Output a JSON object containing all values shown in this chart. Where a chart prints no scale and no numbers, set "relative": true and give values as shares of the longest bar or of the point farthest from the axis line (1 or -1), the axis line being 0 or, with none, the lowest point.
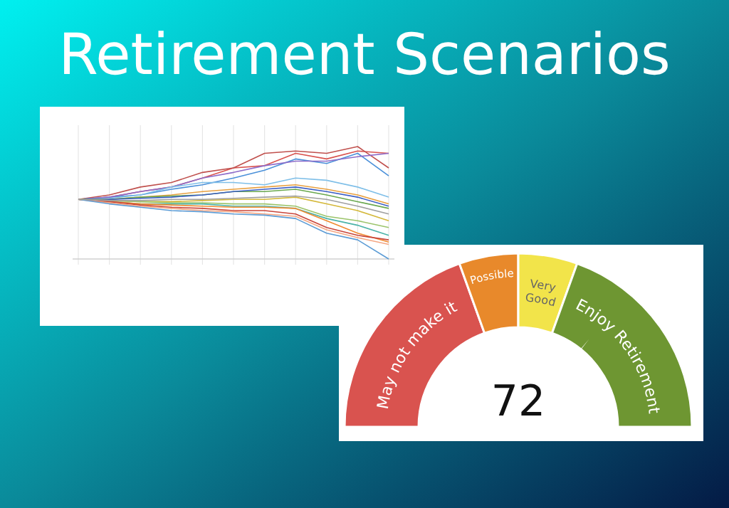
{
  "chart_data": [
    {
      "type": "line",
      "title": "Retirement Scenarios",
      "relative": true,
      "grid": "x",
      "categories": [
        null,
        null,
        null,
        null,
        null,
        null,
        null,
        null,
        null,
        null,
        null
      ],
      "series": [
        {
          "color": "#d9534f",
          "values": [
            0.53,
            0.55,
            0.6,
            0.64,
            0.72,
            0.81,
            0.83,
            0.94,
            0.89,
            0.96,
            0.94
          ]
        },
        {
          "color": "#c0504d",
          "values": [
            0.53,
            0.57,
            0.64,
            0.68,
            0.77,
            0.81,
            0.94,
            0.96,
            0.94,
            1.0,
            0.81
          ]
        },
        {
          "color": "#4a90d9",
          "values": [
            0.53,
            0.55,
            0.57,
            0.62,
            0.66,
            0.72,
            0.79,
            0.89,
            0.85,
            0.94,
            0.74
          ]
        },
        {
          "color": "#8e6cc9",
          "values": [
            0.53,
            0.55,
            0.6,
            0.64,
            0.72,
            0.77,
            0.83,
            0.87,
            0.87,
            0.91,
            0.94
          ]
        },
        {
          "color": "#7fbfe8",
          "values": [
            0.53,
            0.54,
            0.57,
            0.64,
            0.68,
            0.68,
            0.66,
            0.72,
            0.7,
            0.64,
            0.55
          ]
        },
        {
          "color": "#e8a040",
          "values": [
            0.53,
            0.53,
            0.55,
            0.57,
            0.6,
            0.62,
            0.64,
            0.66,
            0.62,
            0.57,
            0.49
          ]
        },
        {
          "color": "#6aa84f",
          "values": [
            0.53,
            0.53,
            0.55,
            0.56,
            0.57,
            0.6,
            0.6,
            0.62,
            0.57,
            0.51,
            0.45
          ]
        },
        {
          "color": "#3d5fc4",
          "values": [
            0.53,
            0.53,
            0.54,
            0.55,
            0.57,
            0.6,
            0.62,
            0.64,
            0.6,
            0.55,
            0.47
          ]
        },
        {
          "color": "#d4b83a",
          "values": [
            0.53,
            0.52,
            0.51,
            0.51,
            0.52,
            0.53,
            0.53,
            0.55,
            0.49,
            0.43,
            0.34
          ]
        },
        {
          "color": "#9bc46a",
          "values": [
            0.53,
            0.52,
            0.51,
            0.5,
            0.5,
            0.49,
            0.49,
            0.47,
            0.38,
            0.34,
            0.28
          ]
        },
        {
          "color": "#4bb3a8",
          "values": [
            0.53,
            0.51,
            0.49,
            0.49,
            0.49,
            0.47,
            0.47,
            0.45,
            0.36,
            0.3,
            0.21
          ]
        },
        {
          "color": "#f08a30",
          "values": [
            0.53,
            0.51,
            0.49,
            0.48,
            0.47,
            0.46,
            0.46,
            0.45,
            0.34,
            0.23,
            0.15
          ]
        },
        {
          "color": "#c9453a",
          "values": [
            0.53,
            0.51,
            0.48,
            0.46,
            0.45,
            0.43,
            0.43,
            0.4,
            0.28,
            0.21,
            0.17
          ]
        },
        {
          "color": "#f4a582",
          "values": [
            0.53,
            0.5,
            0.47,
            0.45,
            0.43,
            0.42,
            0.4,
            0.38,
            0.26,
            0.19,
            0.13
          ]
        },
        {
          "color": "#5b9bd5",
          "values": [
            0.53,
            0.49,
            0.46,
            0.43,
            0.42,
            0.4,
            0.39,
            0.36,
            0.23,
            0.17,
            0.0
          ]
        },
        {
          "color": "#a0a0a0",
          "values": [
            0.53,
            0.52,
            0.52,
            0.53,
            0.53,
            0.54,
            0.55,
            0.56,
            0.53,
            0.47,
            0.4
          ]
        }
      ]
    },
    {
      "type": "donut",
      "categories": [
        "May not make it",
        "Possible",
        "Very Good",
        "Enjoy Retirement"
      ],
      "values": [
        39,
        11,
        11,
        39
      ],
      "colors": [
        "#d9534f",
        "#e8892b",
        "#f2e44a",
        "#6e9632"
      ],
      "needle": "Enjoy Retirement",
      "annotations": [
        "72"
      ]
    }
  ]
}
